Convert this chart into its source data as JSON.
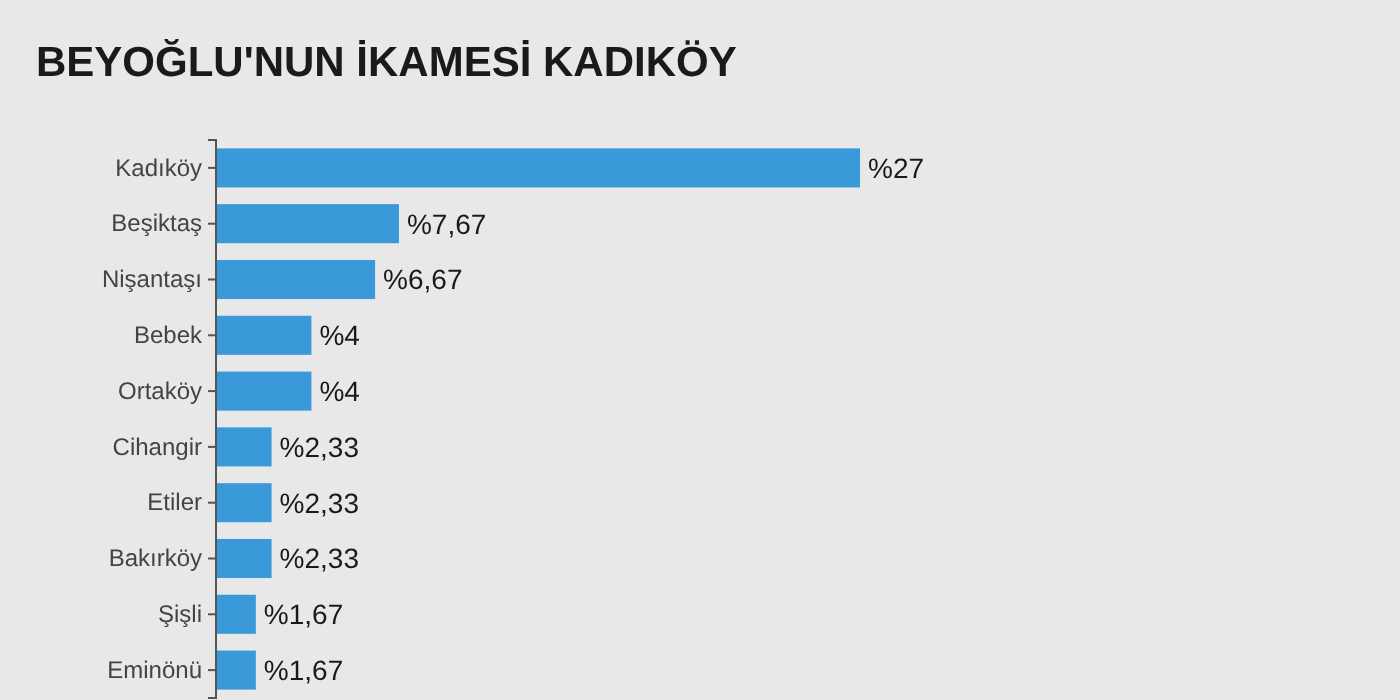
{
  "chart_data": {
    "type": "bar",
    "orientation": "horizontal",
    "title": "BEYOĞLU'NUN İKAMESİ KADIKÖY",
    "categories": [
      "Kadıköy",
      "Beşiktaş",
      "Nişantaşı",
      "Bebek",
      "Ortaköy",
      "Cihangir",
      "Etiler",
      "Bakırköy",
      "Şişli",
      "Eminönü"
    ],
    "values": [
      27,
      7.67,
      6.67,
      4,
      4,
      2.33,
      2.33,
      2.33,
      1.67,
      1.67
    ],
    "value_labels": [
      "%27",
      "%7,67",
      "%6,67",
      "%4",
      "%4",
      "%2,33",
      "%2,33",
      "%2,33",
      "%1,67",
      "%1,67"
    ],
    "color": "#3a9ad9"
  }
}
